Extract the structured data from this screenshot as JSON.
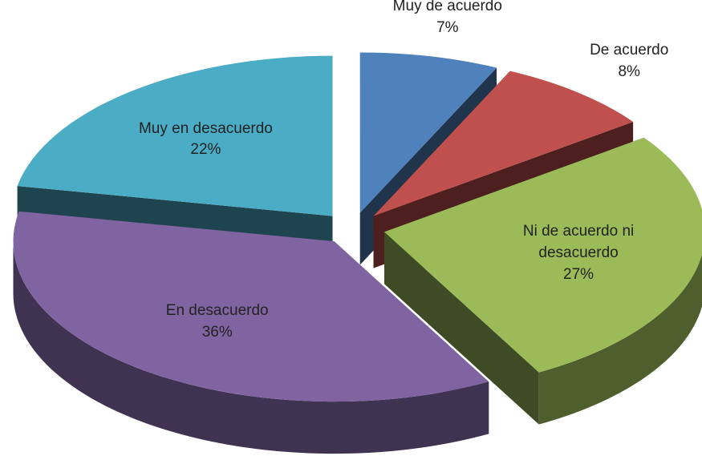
{
  "chart_data": {
    "type": "pie",
    "categories": [
      "Muy de acuerdo",
      "De acuerdo",
      "Ni de acuerdo ni desacuerdo",
      "En desacuerdo",
      "Muy en desacuerdo"
    ],
    "values": [
      7,
      8,
      27,
      36,
      22
    ],
    "value_labels": [
      "7%",
      "8%",
      "27%",
      "36%",
      "22%"
    ],
    "colors": [
      "#4f81bd",
      "#c0504d",
      "#9bbb59",
      "#8064a2",
      "#4bacc6"
    ]
  }
}
